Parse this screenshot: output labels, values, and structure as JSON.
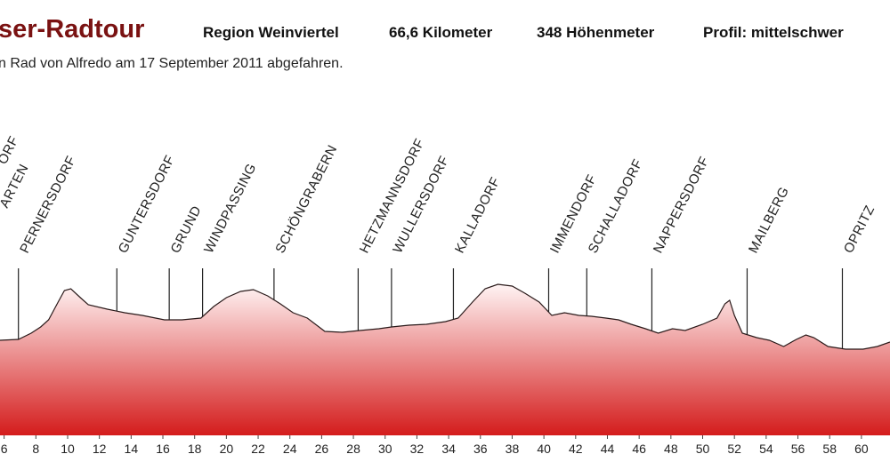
{
  "chart_data": {
    "type": "area",
    "title": "ser-Radtour",
    "info": [
      "Region Weinviertel",
      "66,6 Kilometer",
      "348 Höhenmeter",
      "Profil: mittelschwer"
    ],
    "subtitle": "n Rad von Alfredo am 17 September 2011 abgefahren.",
    "color": "#d41c1c",
    "line_color": "#2a1a1a",
    "x": [
      5.7,
      6.9,
      7.7,
      8.3,
      8.8,
      9.4,
      9.8,
      10.2,
      10.8,
      11.3,
      12.5,
      13.6,
      14.7,
      16.1,
      17.2,
      18.4,
      19.2,
      20.0,
      20.9,
      21.7,
      22.6,
      23.4,
      24.2,
      25.1,
      26.2,
      27.3,
      28.4,
      29.6,
      30.4,
      31.5,
      32.6,
      33.8,
      34.6,
      35.5,
      36.3,
      37.1,
      38.0,
      38.8,
      39.7,
      40.5,
      41.3,
      42.2,
      43.0,
      43.9,
      44.7,
      45.5,
      46.4,
      47.2,
      48.1,
      48.9,
      50.0,
      50.9,
      51.4,
      51.7,
      52.0,
      52.5,
      53.4,
      54.2,
      55.1,
      55.9,
      56.5,
      57.0,
      57.9,
      59.0,
      60.1,
      61.0,
      61.8
    ],
    "values": [
      53.5,
      54,
      57.5,
      61,
      65,
      75,
      81.5,
      82.5,
      77.5,
      73.5,
      71,
      69,
      67.5,
      65,
      65,
      66,
      72.5,
      77.5,
      81,
      82,
      78.5,
      74,
      69,
      66,
      58.5,
      58,
      59,
      60,
      61,
      62,
      62.5,
      64,
      66,
      75,
      82.5,
      85,
      84,
      80,
      75,
      67.5,
      69,
      67.5,
      67,
      66,
      65,
      62.5,
      60,
      57.5,
      60,
      59,
      62.5,
      66,
      74,
      76,
      67.5,
      57.5,
      55,
      53.5,
      50,
      54,
      56.5,
      55,
      50,
      48.5,
      48.5,
      50,
      52.5
    ],
    "xlim": [
      5.74,
      61.8
    ],
    "ylim": [
      0,
      100
    ],
    "xticks": [
      6,
      8,
      10,
      12,
      14,
      16,
      18,
      20,
      22,
      24,
      26,
      28,
      30,
      32,
      34,
      36,
      38,
      40,
      42,
      44,
      46,
      48,
      50,
      52,
      54,
      56,
      58,
      60
    ],
    "edge_labels": [
      "ORF",
      "ARTEN"
    ],
    "annotations": [
      {
        "text": "PERNERSDORF",
        "x": 6.9
      },
      {
        "text": "GUNTERSDORF",
        "x": 13.1
      },
      {
        "text": "GRUND",
        "x": 16.4
      },
      {
        "text": "WINDPASSING",
        "x": 18.5
      },
      {
        "text": "SCHÖNGRABERN",
        "x": 23.0
      },
      {
        "text": "HETZMANNSDORF",
        "x": 28.3
      },
      {
        "text": "WULLERSDORF",
        "x": 30.4
      },
      {
        "text": "KALLADORF",
        "x": 34.3
      },
      {
        "text": "IMMENDORF",
        "x": 40.3
      },
      {
        "text": "SCHALLADORF",
        "x": 42.7
      },
      {
        "text": "NAPPERSDORF",
        "x": 46.8
      },
      {
        "text": "MAILBERG",
        "x": 52.8
      },
      {
        "text": "OPRITZ",
        "x": 58.8
      }
    ]
  }
}
